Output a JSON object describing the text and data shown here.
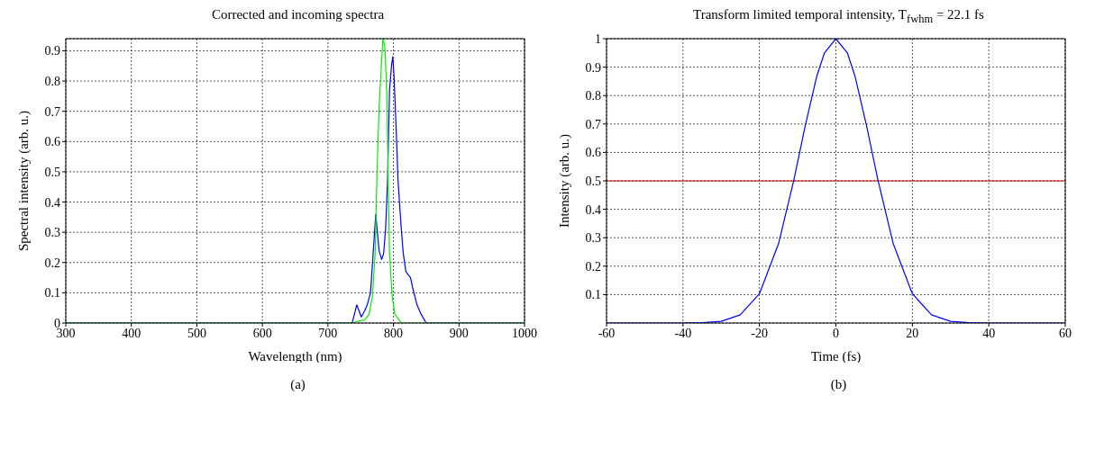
{
  "chart_data": [
    {
      "type": "line",
      "title": "Corrected and incoming spectra",
      "xlabel": "Wavelength (nm)",
      "ylabel": "Spectral intensity (arb. u.)",
      "xlim": [
        300,
        1000
      ],
      "xticks": [
        300,
        400,
        500,
        600,
        700,
        800,
        900,
        1000
      ],
      "ylim": [
        0,
        0.94
      ],
      "yticks": [
        0,
        0.1,
        0.2,
        0.3,
        0.4,
        0.5,
        0.6,
        0.7,
        0.8,
        0.9
      ],
      "grid": true,
      "legend": false,
      "marker": "none",
      "line_style": "solid",
      "annotations": [
        "(a)"
      ],
      "series": [
        {
          "color": "#0000ff",
          "x": [
            300,
            737,
            744,
            751,
            756,
            760,
            765,
            769,
            773,
            778,
            782,
            785,
            788,
            791,
            794,
            797,
            799,
            801,
            804,
            807,
            812,
            815,
            819,
            826,
            830,
            836,
            842,
            850,
            1000
          ],
          "values": [
            0,
            0,
            0.06,
            0.02,
            0.04,
            0.06,
            0.1,
            0.23,
            0.36,
            0.24,
            0.21,
            0.23,
            0.31,
            0.47,
            0.77,
            0.85,
            0.88,
            0.81,
            0.65,
            0.47,
            0.31,
            0.23,
            0.17,
            0.15,
            0.11,
            0.06,
            0.03,
            0,
            0
          ]
        },
        {
          "color": "#00ee00",
          "x": [
            300,
            737,
            746,
            756,
            763,
            768,
            772,
            775,
            778,
            782,
            784,
            787,
            790,
            792,
            794,
            798,
            802,
            812,
            1000
          ],
          "values": [
            0,
            0,
            0.006,
            0.01,
            0.03,
            0.09,
            0.23,
            0.5,
            0.71,
            0.87,
            0.94,
            0.91,
            0.75,
            0.47,
            0.23,
            0.09,
            0.03,
            0,
            0
          ]
        }
      ]
    },
    {
      "type": "line",
      "title": "Transform limited temporal intensity, T$_{fwhm}$ = 22.1 fs",
      "xlabel": "Time (fs)",
      "ylabel": "Intensity (arb. u.)",
      "xlim": [
        -60,
        60
      ],
      "xticks": [
        -60,
        -40,
        -20,
        0,
        20,
        40,
        60
      ],
      "ylim": [
        0,
        1
      ],
      "yticks": [
        0.1,
        0.2,
        0.3,
        0.4,
        0.5,
        0.6,
        0.7,
        0.8,
        0.9,
        1
      ],
      "grid": true,
      "legend": false,
      "marker": "none",
      "line_style": "solid",
      "annotations": [
        "(b)"
      ],
      "ref_lines": [
        {
          "axis": "y",
          "value": 0.5,
          "color": "#cc0000"
        }
      ],
      "series": [
        {
          "color": "#0000ff",
          "x": [
            -60,
            -40,
            -35,
            -30,
            -25,
            -20,
            -15,
            -11,
            -8,
            -5,
            -3,
            0,
            3,
            5,
            8,
            11,
            15,
            20,
            25,
            30,
            35,
            40,
            60
          ],
          "values": [
            0,
            0,
            0.001,
            0.006,
            0.029,
            0.103,
            0.279,
            0.503,
            0.695,
            0.868,
            0.95,
            1,
            0.95,
            0.868,
            0.695,
            0.503,
            0.279,
            0.103,
            0.029,
            0.006,
            0.001,
            0,
            0
          ]
        }
      ]
    }
  ]
}
